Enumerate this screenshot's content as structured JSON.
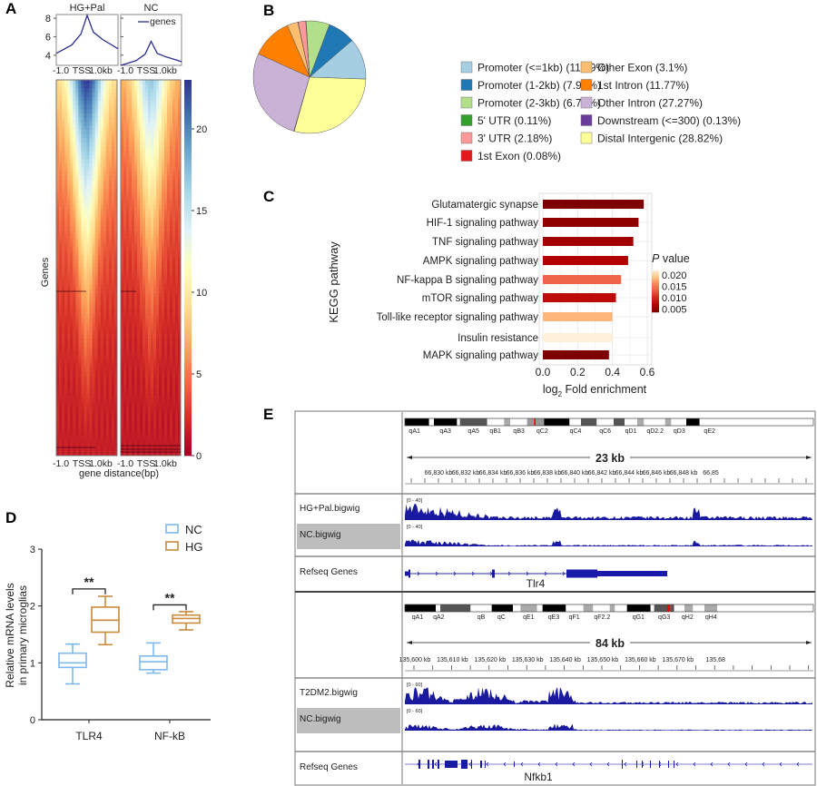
{
  "panels": {
    "a": "A",
    "b": "B",
    "c": "C",
    "d": "D",
    "e": "E"
  },
  "chart_data": [
    {
      "panel": "A",
      "type": "line",
      "titles": [
        "HG+Pal",
        "NC"
      ],
      "legend": "genes",
      "yticks": [
        4,
        6,
        8
      ],
      "ylim": [
        2.9,
        8.4
      ],
      "xtick_labels": [
        "-1.0",
        "TSS",
        "1.0kb"
      ],
      "series": [
        {
          "panel_title": "HG+Pal",
          "x": [
            -1.0,
            -0.5,
            -0.2,
            0.0,
            0.2,
            0.5,
            1.0
          ],
          "y": [
            4.2,
            5.1,
            6.3,
            8.3,
            6.5,
            5.7,
            4.7
          ]
        },
        {
          "panel_title": "NC",
          "x": [
            -1.0,
            -0.5,
            -0.2,
            0.0,
            0.2,
            0.5,
            1.0
          ],
          "y": [
            2.9,
            3.4,
            4.1,
            5.5,
            4.2,
            3.8,
            3.3
          ]
        }
      ],
      "color": "#2b2f8f"
    },
    {
      "panel": "A",
      "type": "heatmap",
      "ylabel": "Genes",
      "xlabel": "gene distance(bp)",
      "xtick_labels": [
        "-1.0",
        "TSS",
        "1.0kb"
      ],
      "colorbar_ticks": [
        0,
        5,
        10,
        15,
        20
      ],
      "colorbar_range": [
        0,
        23
      ],
      "colormap": "RdYlBu reversed",
      "max_signal": {
        "HG+Pal": 23,
        "NC": 17
      }
    },
    {
      "panel": "B",
      "type": "pie",
      "slices": [
        {
          "label": "Promoter (<=1kb) (11.89%)",
          "value": 11.89,
          "color": "#a6cee3"
        },
        {
          "label": "Promoter (1-2kb) (7.92%)",
          "value": 7.92,
          "color": "#1f78b4"
        },
        {
          "label": "Promoter (2-3kb) (6.73%)",
          "value": 6.73,
          "color": "#b2df8a"
        },
        {
          "label": "5' UTR (0.11%)",
          "value": 0.11,
          "color": "#33a02c"
        },
        {
          "label": "3' UTR (2.18%)",
          "value": 2.18,
          "color": "#fb9a99"
        },
        {
          "label": "1st Exon (0.08%)",
          "value": 0.08,
          "color": "#e31a1c"
        },
        {
          "label": "Other Exon (3.1%)",
          "value": 3.1,
          "color": "#fdbf6f"
        },
        {
          "label": "1st Intron (11.77%)",
          "value": 11.77,
          "color": "#ff7f00"
        },
        {
          "label": "Other Intron (27.27%)",
          "value": 27.27,
          "color": "#cab2d6"
        },
        {
          "label": "Downstream (<=300) (0.13%)",
          "value": 0.13,
          "color": "#6a3d9a"
        },
        {
          "label": "Distal Intergenic (28.82%)",
          "value": 28.82,
          "color": "#ffff99"
        }
      ]
    },
    {
      "panel": "C",
      "type": "bar",
      "orientation": "horizontal",
      "ylabel": "KEGG pathway",
      "xlabel_main": "log",
      "xlabel_sub": "2",
      "xlabel_rest": " Fold enrichment",
      "xlim": [
        0,
        0.6
      ],
      "xticks": [
        "0.0",
        "0.2",
        "0.4",
        "0.6"
      ],
      "grid": true,
      "legend_title_italic": "P",
      "legend_title_rest": " value",
      "legend_ticks": [
        "0.020",
        "0.015",
        "0.010",
        "0.005"
      ],
      "categories": [
        "Glutamatergic synapse",
        "HIF-1 signaling pathway",
        "TNF signaling pathway",
        "AMPK signaling pathway",
        "NF-kappa B signaling pathway",
        "mTOR signaling pathway",
        "Toll-like receptor signaling pathway",
        "Insulin resistance",
        "MAPK signaling pathway"
      ],
      "values": [
        0.58,
        0.55,
        0.52,
        0.49,
        0.45,
        0.42,
        0.4,
        0.4,
        0.38
      ],
      "p_values": [
        0.003,
        0.004,
        0.005,
        0.006,
        0.013,
        0.007,
        0.018,
        0.022,
        0.003
      ]
    },
    {
      "panel": "D",
      "type": "box",
      "ylabel_line1": "Relative mRNA levels",
      "ylabel_line2": "in primary microglias",
      "ylim": [
        0,
        3
      ],
      "yticks": [
        "0",
        "1",
        "2",
        "3"
      ],
      "categories": [
        "TLR4",
        "NF-kB"
      ],
      "significance": [
        "**",
        "**"
      ],
      "series": [
        {
          "name": "NC",
          "color": "#7fb8f0",
          "boxes": [
            {
              "min": 0.63,
              "q1": 0.92,
              "median": 1.0,
              "q3": 1.17,
              "max": 1.33
            },
            {
              "min": 0.82,
              "q1": 0.88,
              "median": 1.02,
              "q3": 1.12,
              "max": 1.35
            }
          ]
        },
        {
          "name": "HG",
          "color": "#c98a3c",
          "boxes": [
            {
              "min": 1.32,
              "q1": 1.54,
              "median": 1.75,
              "q3": 1.98,
              "max": 2.17
            },
            {
              "min": 1.58,
              "q1": 1.7,
              "median": 1.78,
              "q3": 1.84,
              "max": 1.9
            }
          ]
        }
      ]
    }
  ],
  "igv": {
    "loci": [
      {
        "bands": [
          "qA1",
          "qA3",
          "qA5",
          "qB1",
          "qB3",
          "qC2",
          "qC4",
          "qC6",
          "qD1",
          "qD2.2",
          "qD3",
          "qE2"
        ],
        "span": "23 kb",
        "ticks": [
          "66,830 kb",
          "66,832 kb",
          "66,834 kb",
          "66,836 kb",
          "66,838 kb",
          "66,840 kb",
          "66,842 kb",
          "66,844 kb",
          "66,846 kb",
          "66,848 kb",
          "66,85"
        ],
        "tracks": [
          {
            "name": "HG+Pal.bigwig",
            "range": "[0 - 40]",
            "selected": false
          },
          {
            "name": "NC.bigwig",
            "range": "[0 - 40]",
            "selected": true
          }
        ],
        "gene_track": "Refseq Genes",
        "gene": "Tlr4"
      },
      {
        "bands": [
          "qA1",
          "qA2",
          "qB",
          "qC",
          "qE1",
          "qE3",
          "qF1",
          "qF2.2",
          "qG1",
          "qG3",
          "qH2",
          "qH4"
        ],
        "span": "84 kb",
        "ticks": [
          "135,600 kb",
          "135,610 kb",
          "135,620 kb",
          "135,630 kb",
          "135,640 kb",
          "135,650 kb",
          "135,660 kb",
          "135,670 kb",
          "135,68"
        ],
        "tracks": [
          {
            "name": "T2DM2.bigwig",
            "range": "[0 - 60]",
            "selected": false
          },
          {
            "name": "NC.bigwig",
            "range": "[0 - 60]",
            "selected": true
          }
        ],
        "gene_track": "Refseq Genes",
        "gene": "Nfkb1"
      }
    ],
    "signal_color": "#1a1aa0"
  }
}
